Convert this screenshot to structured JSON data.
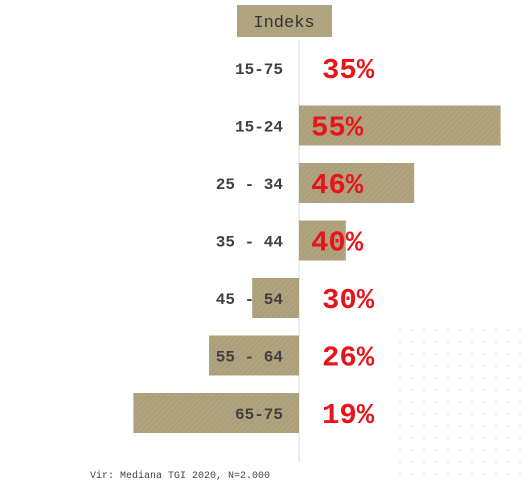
{
  "chart_data": {
    "type": "bar",
    "title": "Indeks",
    "categories": [
      "15-75",
      "15-24",
      "25 - 34",
      "35 - 44",
      "45 - 54",
      "55 - 64",
      "65-75"
    ],
    "values": [
      100,
      156,
      132,
      113,
      87,
      75,
      54
    ],
    "value_labels": [
      "35%",
      "55%",
      "46%",
      "40%",
      "30%",
      "26%",
      "19%"
    ],
    "baseline": 100,
    "source": "Vir: Mediana TGI 2020, N=2.000",
    "colors": {
      "bar": "#b0a37f",
      "label": "#e8141b"
    }
  }
}
